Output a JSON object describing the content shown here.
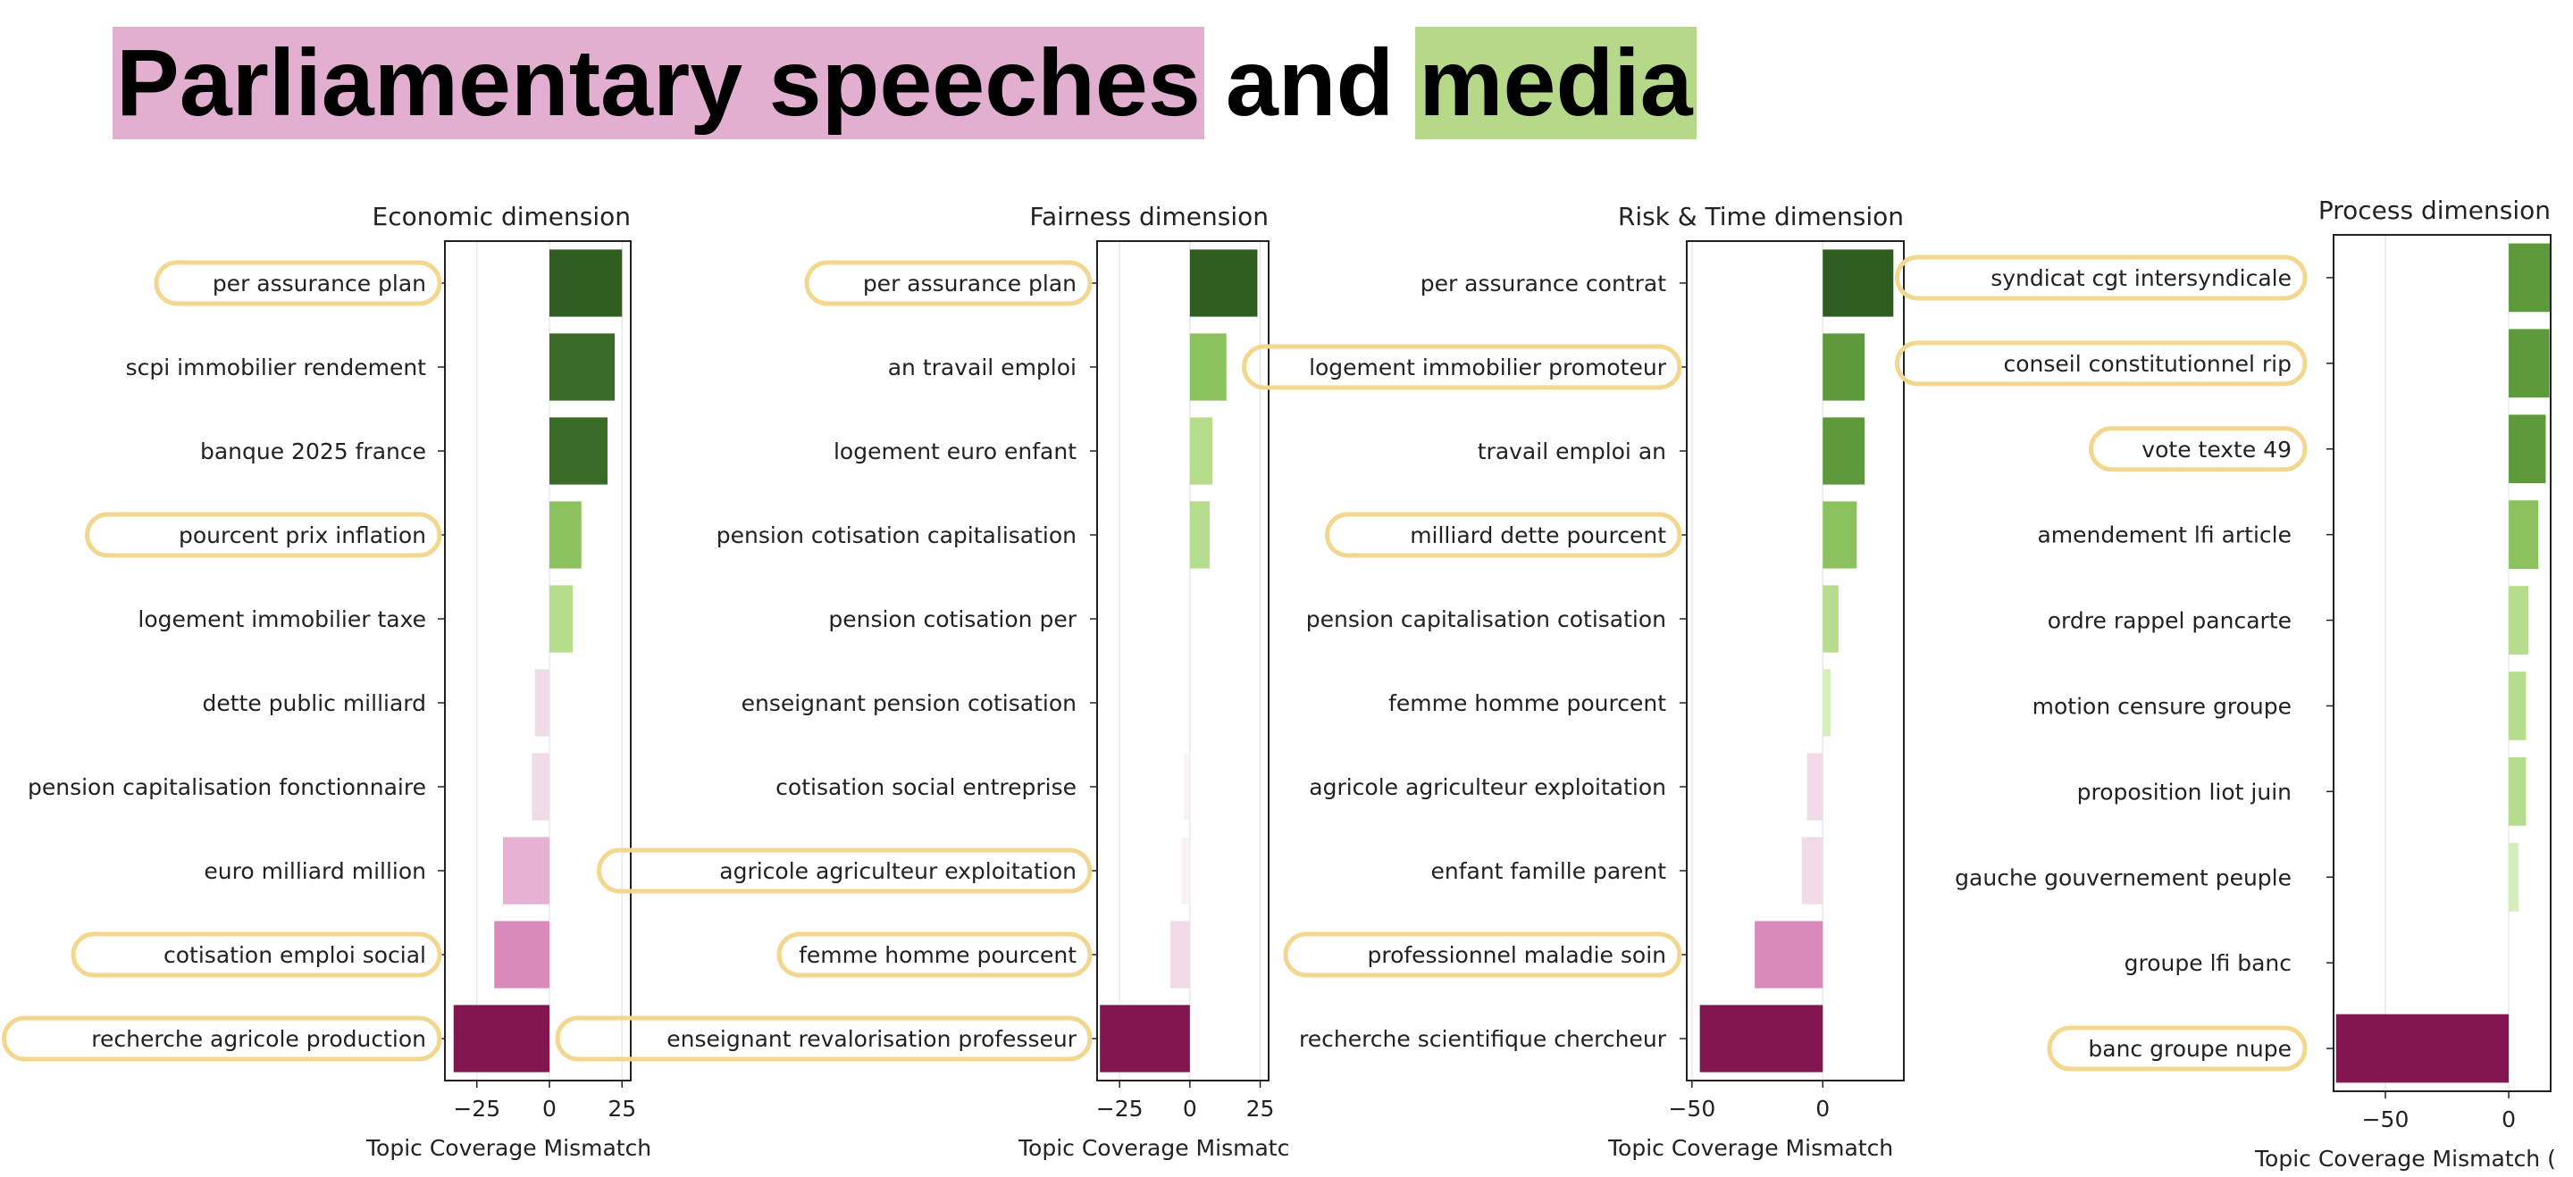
{
  "title": {
    "part1": "Parliamentary speeches",
    "part2": "and",
    "part3": "media",
    "part1_bg": "#e2afd0",
    "part3_bg": "#b6d989"
  },
  "chart_data": [
    {
      "type": "bar",
      "orientation": "horizontal",
      "title": "Economic dimension",
      "xlabel": "Topic Coverage Mismatch",
      "xlim": [
        -36,
        28
      ],
      "xticks": [
        -25,
        0,
        25
      ],
      "grid": true,
      "categories": [
        "per assurance plan",
        "scpi immobilier rendement",
        "banque 2025 france",
        "pourcent prix inflation",
        "logement immobilier taxe",
        "dette public milliard",
        "pension capitalisation fonctionnaire",
        "euro milliard million",
        "cotisation emploi social",
        "recherche agricole production"
      ],
      "values": [
        25,
        22.5,
        20,
        11,
        8,
        -5,
        -6,
        -16,
        -19,
        -33
      ],
      "highlighted": [
        true,
        false,
        false,
        true,
        false,
        false,
        false,
        false,
        true,
        true
      ]
    },
    {
      "type": "bar",
      "orientation": "horizontal",
      "title": "Fairness dimension",
      "xlabel": "Topic Coverage Mismatch",
      "xlim": [
        -33,
        28
      ],
      "xticks": [
        -25,
        0,
        25
      ],
      "grid": true,
      "categories": [
        "per assurance plan",
        "an travail emploi",
        "logement euro enfant",
        "pension cotisation capitalisation",
        "pension cotisation per",
        "enseignant pension cotisation",
        "cotisation social entreprise",
        "agricole agriculteur exploitation",
        "femme homme pourcent",
        "enseignant revalorisation professeur"
      ],
      "values": [
        24,
        13,
        8,
        7,
        0,
        0,
        -2,
        -3,
        -7,
        -32
      ],
      "highlighted": [
        true,
        false,
        false,
        false,
        false,
        false,
        false,
        true,
        true,
        true
      ]
    },
    {
      "type": "bar",
      "orientation": "horizontal",
      "title": "Risk & Time dimension",
      "xlabel": "Topic Coverage Mismatch",
      "xlim": [
        -52,
        31
      ],
      "xticks": [
        -50,
        0
      ],
      "grid": true,
      "categories": [
        "per assurance contrat",
        "logement immobilier promoteur",
        "travail emploi an",
        "milliard dette pourcent",
        "pension capitalisation cotisation",
        "femme homme pourcent",
        "agricole agriculteur exploitation",
        "enfant famille parent",
        "professionnel maladie soin",
        "recherche scientifique chercheur"
      ],
      "values": [
        27,
        16,
        16,
        13,
        6,
        3,
        -6,
        -8,
        -26,
        -47
      ],
      "highlighted": [
        false,
        true,
        false,
        true,
        false,
        false,
        false,
        false,
        true,
        false
      ]
    },
    {
      "type": "bar",
      "orientation": "horizontal",
      "title": "Process dimension",
      "xlabel": "Topic Coverage Mismatch (",
      "xlim": [
        -71,
        17
      ],
      "xticks": [
        -50,
        0
      ],
      "grid": true,
      "categories": [
        "syndicat cgt intersyndicale",
        "conseil constitutionnel rip",
        "vote texte 49",
        "amendement lfi article",
        "ordre rappel pancarte",
        "motion censure groupe",
        "proposition liot juin",
        "gauche gouvernement peuple",
        "groupe lfi banc",
        "banc groupe nupe"
      ],
      "values": [
        17,
        16.5,
        15,
        12,
        8,
        7,
        7,
        4,
        0,
        -70
      ],
      "highlighted": [
        true,
        true,
        true,
        false,
        false,
        false,
        false,
        false,
        false,
        true
      ]
    }
  ],
  "colors": {
    "highlight_outline": "#f3d78f",
    "grid": "#e4e4e4",
    "axis": "#222222",
    "diverging_positive": [
      "#f2f6ea",
      "#d6edbe",
      "#b6dd8b",
      "#8cc25d",
      "#5e9a3b",
      "#3a6b26",
      "#2f5d21"
    ],
    "diverging_negative": [
      "#f8f1f5",
      "#f1dbe7",
      "#e7b2d2",
      "#d98ab8",
      "#b83f84",
      "#811651"
    ]
  }
}
